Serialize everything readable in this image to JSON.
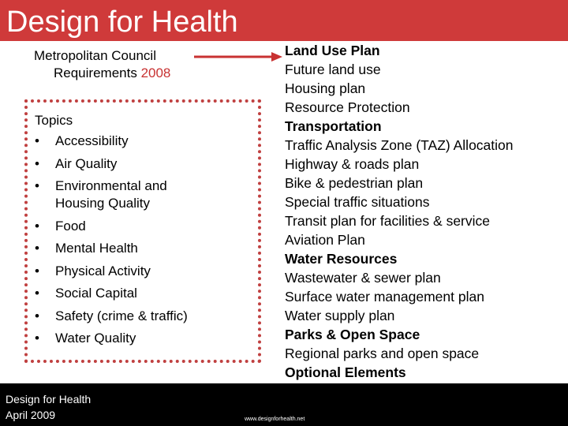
{
  "slide": {
    "title": "Design for Health",
    "met_council": {
      "line1": "Metropolitan Council",
      "line2_text": "Requirements ",
      "year": "2008"
    },
    "topics": {
      "heading": "Topics",
      "bullet": "•",
      "items": [
        "Accessibility",
        "Air Quality",
        "Environmental and Housing Quality",
        "Food",
        "Mental Health",
        "Physical Activity",
        "Social Capital",
        "Safety (crime & traffic)",
        "Water Quality"
      ]
    },
    "plan_elements": [
      {
        "text": "Land Use Plan",
        "bold": true
      },
      {
        "text": "Future land use",
        "bold": false
      },
      {
        "text": "Housing plan",
        "bold": false
      },
      {
        "text": "Resource Protection",
        "bold": false
      },
      {
        "text": "Transportation",
        "bold": true
      },
      {
        "text": "Traffic Analysis Zone (TAZ) Allocation",
        "bold": false
      },
      {
        "text": "Highway & roads plan",
        "bold": false
      },
      {
        "text": "Bike & pedestrian plan",
        "bold": false
      },
      {
        "text": "Special traffic situations",
        "bold": false
      },
      {
        "text": "Transit plan for facilities & service",
        "bold": false
      },
      {
        "text": "Aviation Plan",
        "bold": false
      },
      {
        "text": "Water Resources",
        "bold": true
      },
      {
        "text": "Wastewater & sewer plan",
        "bold": false
      },
      {
        "text": "Surface water management plan",
        "bold": false
      },
      {
        "text": "Water supply plan",
        "bold": false
      },
      {
        "text": "Parks & Open Space",
        "bold": true
      },
      {
        "text": "Regional parks and open space",
        "bold": false
      },
      {
        "text": "Optional Elements",
        "bold": true
      }
    ],
    "footer": {
      "line1": "Design for Health",
      "line2": "April 2009",
      "url": "www.designforhealth.net"
    },
    "colors": {
      "accent_red": "#cf3a3a",
      "box_border": "#c04040",
      "footer_bg": "#000000"
    },
    "icons": {
      "arrow": "right-arrow-icon"
    }
  }
}
